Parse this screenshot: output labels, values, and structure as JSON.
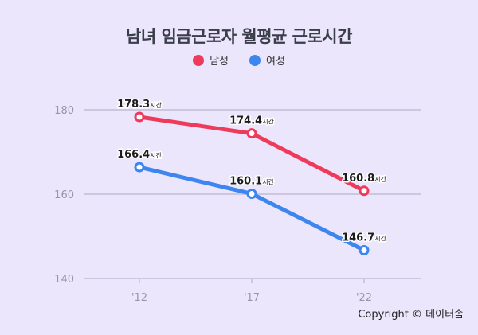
{
  "title": "남녀 임금근로자 월평균 근로시간",
  "copyright": "Copyright © 데이터솜",
  "chart_data": {
    "type": "line",
    "title": "남녀 임금근로자 월평균 근로시간",
    "categories": [
      "'12",
      "'17",
      "'22"
    ],
    "ylim": [
      140,
      180
    ],
    "yticks": [
      140,
      160,
      180
    ],
    "grid": true,
    "legend_position": "top-center",
    "value_suffix": "시간",
    "series": [
      {
        "name": "남성",
        "color": "#ee3a5b",
        "values": [
          178.3,
          174.4,
          160.8
        ]
      },
      {
        "name": "여성",
        "color": "#3d86ef",
        "values": [
          166.4,
          160.1,
          146.7
        ]
      }
    ]
  }
}
